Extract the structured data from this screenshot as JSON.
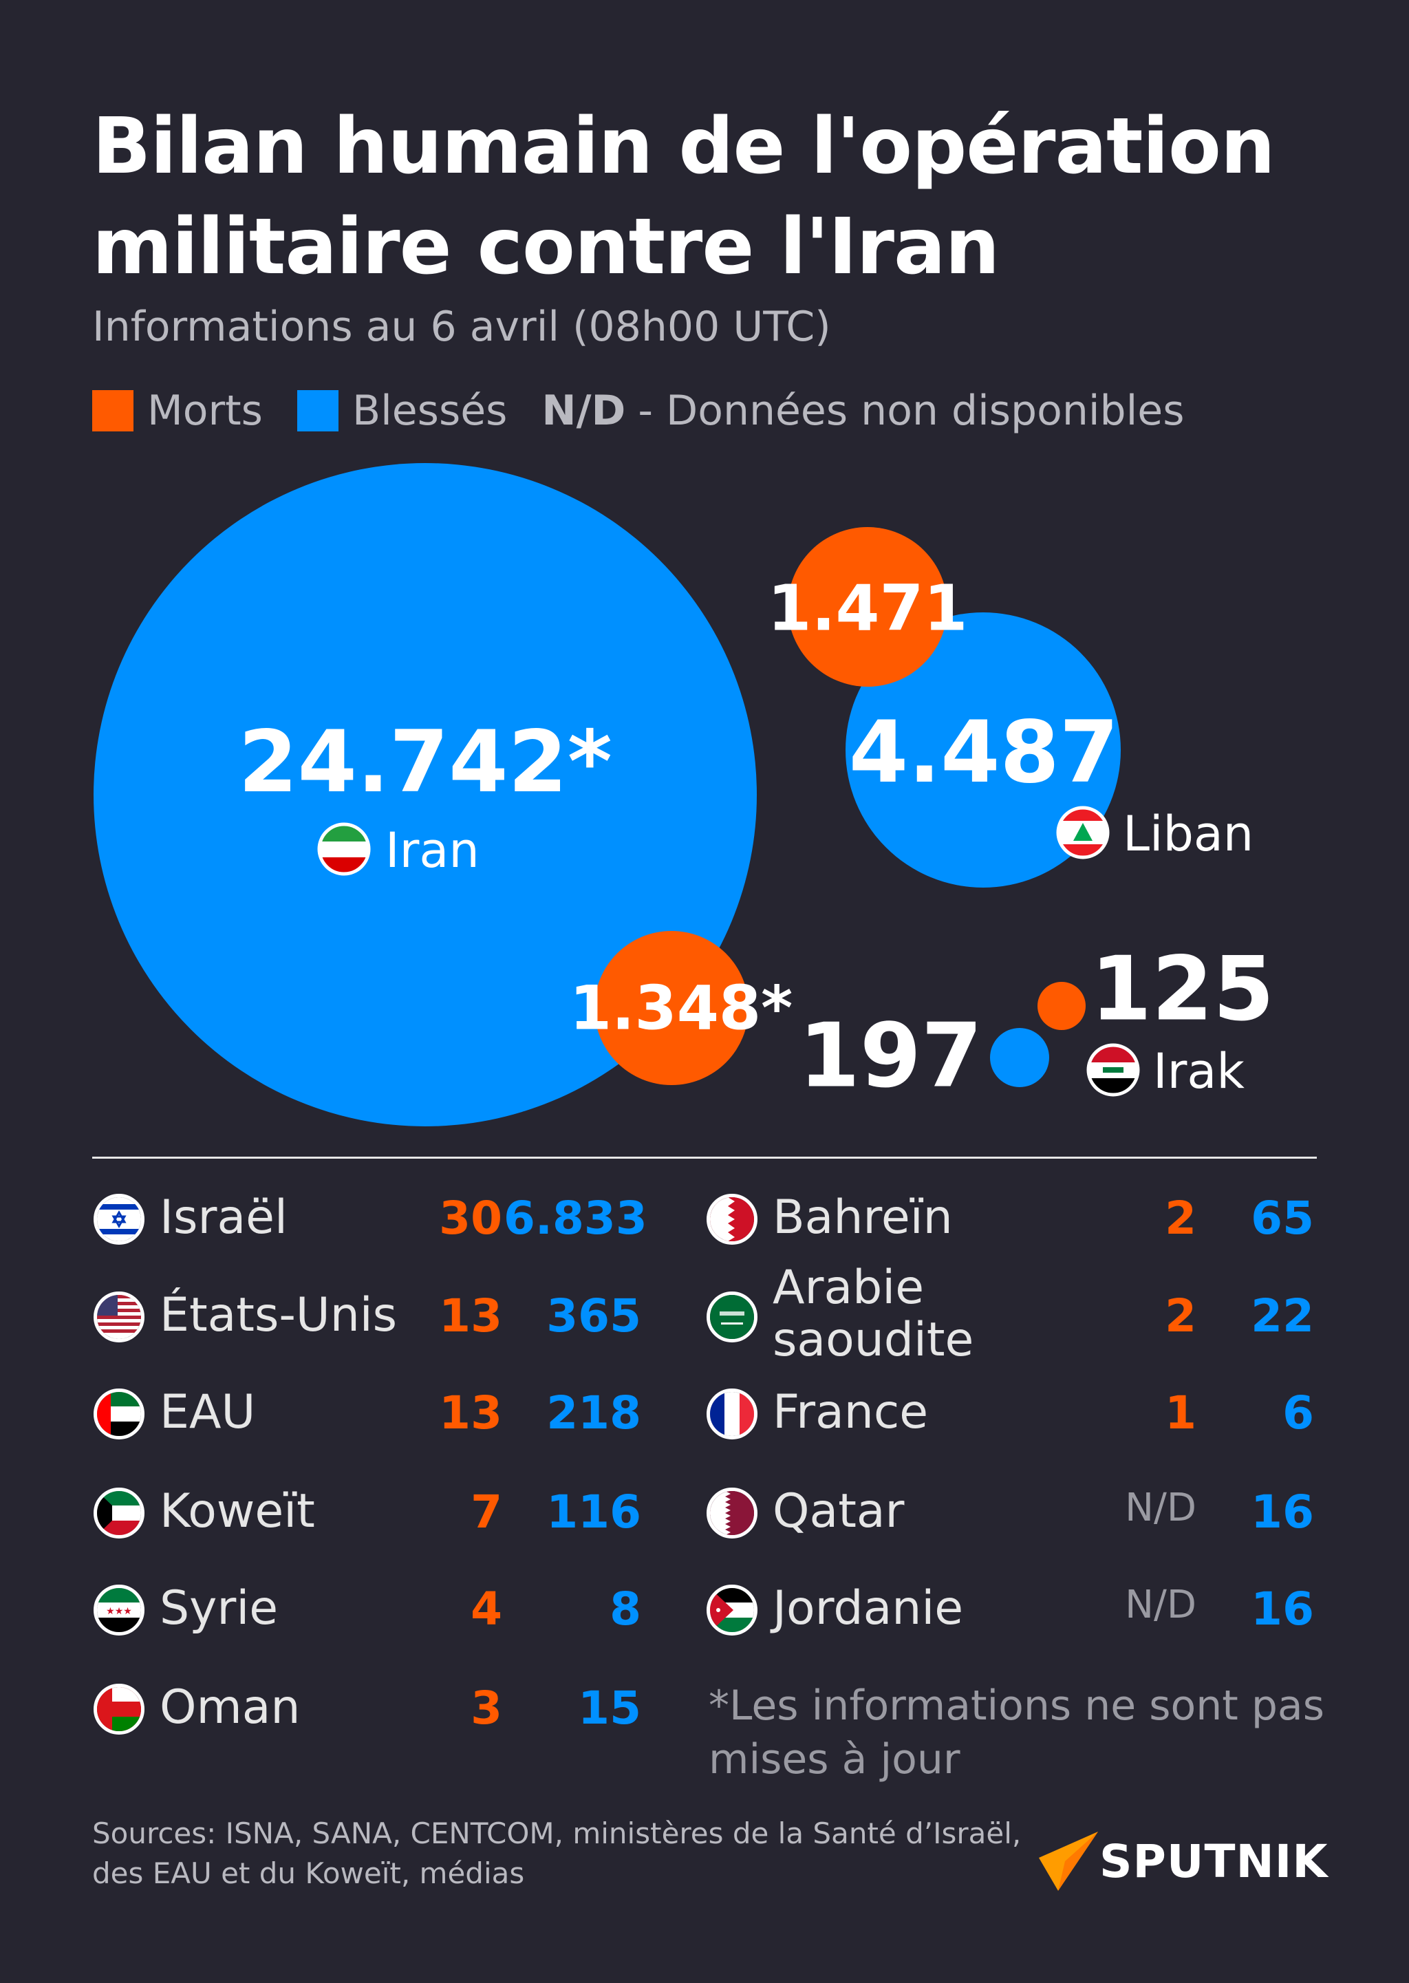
{
  "header": {
    "title": "Bilan humain de l'opération militaire contre l'Iran",
    "subtitle": "Informations au 6 avril (08h00 UTC)"
  },
  "legend": {
    "deaths": "Morts",
    "injured": "Blessés",
    "nd_abbr": "N/D",
    "nd_text": "- Données non disponibles"
  },
  "colors": {
    "deaths": "#ff5a00",
    "injured": "#0090ff",
    "background": "#262530"
  },
  "chart_data": {
    "type": "bubble",
    "title": "Bilan humain de l'opération militaire contre l'Iran",
    "series": [
      {
        "country": "Iran",
        "deaths": "1.348*",
        "injured": "24.742*",
        "deaths_value": 1348,
        "injured_value": 24742
      },
      {
        "country": "Liban",
        "deaths": "1.471",
        "injured": "4.487",
        "deaths_value": 1471,
        "injured_value": 4487
      },
      {
        "country": "Irak",
        "deaths": "125",
        "injured": "197",
        "deaths_value": 125,
        "injured_value": 197
      }
    ]
  },
  "table": {
    "left": [
      {
        "country": "Israël",
        "deaths": "30",
        "injured": "6.833",
        "flag": "israel-flag-icon"
      },
      {
        "country": "États-Unis",
        "deaths": "13",
        "injured": "365",
        "flag": "usa-flag-icon"
      },
      {
        "country": "EAU",
        "deaths": "13",
        "injured": "218",
        "flag": "uae-flag-icon"
      },
      {
        "country": "Koweït",
        "deaths": "7",
        "injured": "116",
        "flag": "kuwait-flag-icon"
      },
      {
        "country": "Syrie",
        "deaths": "4",
        "injured": "8",
        "flag": "syria-flag-icon"
      },
      {
        "country": "Oman",
        "deaths": "3",
        "injured": "15",
        "flag": "oman-flag-icon"
      }
    ],
    "right": [
      {
        "country": "Bahreïn",
        "deaths": "2",
        "injured": "65",
        "flag": "bahrain-flag-icon"
      },
      {
        "country": "Arabie saoudite",
        "deaths": "2",
        "injured": "22",
        "flag": "saudi-flag-icon"
      },
      {
        "country": "France",
        "deaths": "1",
        "injured": "6",
        "flag": "france-flag-icon"
      },
      {
        "country": "Qatar",
        "deaths": "N/D",
        "injured": "16",
        "flag": "qatar-flag-icon"
      },
      {
        "country": "Jordanie",
        "deaths": "N/D",
        "injured": "16",
        "flag": "jordan-flag-icon"
      }
    ]
  },
  "footnote": "*Les informations ne sont pas mises à jour",
  "sources": "Sources: ISNA, SANA, CENTCOM, ministères de la Santé d’Israël, des EAU et du Koweït, médias",
  "brand": "SPUTNIK"
}
